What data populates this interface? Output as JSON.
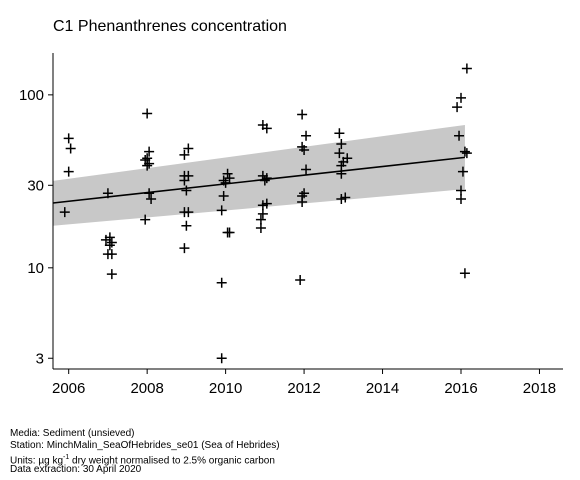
{
  "chart_data": {
    "type": "scatter",
    "title": "C1 Phenanthrenes concentration",
    "xlabel": "",
    "ylabel": "",
    "xlim": [
      2005.6,
      2018.6
    ],
    "ylim": [
      2.6,
      170
    ],
    "yscale": "log",
    "x_ticks": [
      2006,
      2008,
      2010,
      2012,
      2014,
      2016,
      2018
    ],
    "y_ticks": [
      3,
      10,
      30,
      100
    ],
    "grid": false,
    "points": [
      [
        2005.9,
        21
      ],
      [
        2006.0,
        56
      ],
      [
        2006.05,
        49
      ],
      [
        2006.0,
        36
      ],
      [
        2007.0,
        27
      ],
      [
        2006.95,
        14.5
      ],
      [
        2007.05,
        15
      ],
      [
        2007.1,
        14
      ],
      [
        2007.05,
        13.5
      ],
      [
        2007.1,
        12
      ],
      [
        2007.0,
        12
      ],
      [
        2007.1,
        9.2
      ],
      [
        2008.0,
        78
      ],
      [
        2008.05,
        47
      ],
      [
        2008.0,
        43
      ],
      [
        2007.95,
        42
      ],
      [
        2008.05,
        40
      ],
      [
        2008.0,
        39
      ],
      [
        2008.05,
        27
      ],
      [
        2008.1,
        25
      ],
      [
        2007.95,
        19
      ],
      [
        2008.95,
        45
      ],
      [
        2009.05,
        49
      ],
      [
        2008.95,
        34
      ],
      [
        2009.05,
        34
      ],
      [
        2008.95,
        32
      ],
      [
        2009.0,
        28
      ],
      [
        2008.95,
        21
      ],
      [
        2009.05,
        21
      ],
      [
        2009.0,
        17.5
      ],
      [
        2008.95,
        13
      ],
      [
        2009.95,
        32
      ],
      [
        2010.0,
        31
      ],
      [
        2010.05,
        35
      ],
      [
        2010.1,
        33
      ],
      [
        2009.95,
        26
      ],
      [
        2009.9,
        21.5
      ],
      [
        2010.05,
        16
      ],
      [
        2010.1,
        16
      ],
      [
        2009.9,
        8.2
      ],
      [
        2009.9,
        3.0
      ],
      [
        2010.95,
        67
      ],
      [
        2011.05,
        64
      ],
      [
        2010.95,
        34
      ],
      [
        2011.05,
        33
      ],
      [
        2011.0,
        32
      ],
      [
        2011.05,
        23.5
      ],
      [
        2010.95,
        23
      ],
      [
        2010.95,
        20.5
      ],
      [
        2010.9,
        19
      ],
      [
        2010.9,
        17
      ],
      [
        2011.95,
        77
      ],
      [
        2012.05,
        58
      ],
      [
        2011.95,
        50
      ],
      [
        2012.0,
        48
      ],
      [
        2012.05,
        37
      ],
      [
        2012.0,
        27
      ],
      [
        2011.95,
        26
      ],
      [
        2011.95,
        24
      ],
      [
        2011.9,
        8.5
      ],
      [
        2012.9,
        60
      ],
      [
        2012.95,
        52
      ],
      [
        2012.9,
        46
      ],
      [
        2013.0,
        41
      ],
      [
        2013.1,
        43
      ],
      [
        2012.95,
        39
      ],
      [
        2012.95,
        35
      ],
      [
        2013.05,
        25.5
      ],
      [
        2012.95,
        25
      ],
      [
        2016.15,
        142
      ],
      [
        2016.0,
        96
      ],
      [
        2015.9,
        85
      ],
      [
        2015.95,
        58
      ],
      [
        2016.1,
        47
      ],
      [
        2016.15,
        46
      ],
      [
        2016.05,
        36
      ],
      [
        2016.0,
        28
      ],
      [
        2016.0,
        25
      ],
      [
        2016.1,
        9.3
      ]
    ],
    "trend": {
      "x": [
        2005.6,
        2016.1
      ],
      "y": [
        23.7,
        43.5
      ],
      "ci_lower": [
        17.5,
        28.5
      ],
      "ci_upper": [
        31.8,
        67.0
      ]
    }
  },
  "footer": {
    "media": "Media: Sediment (unsieved)",
    "station": "Station: MinchMalin_SeaOfHebrides_se01 (Sea of Hebrides)",
    "units_prefix": "Units:  µg kg",
    "units_sup": "-1",
    "units_suffix": " dry weight normalised to 2.5% organic carbon",
    "extraction": "Data extraction: 30 April 2020"
  }
}
